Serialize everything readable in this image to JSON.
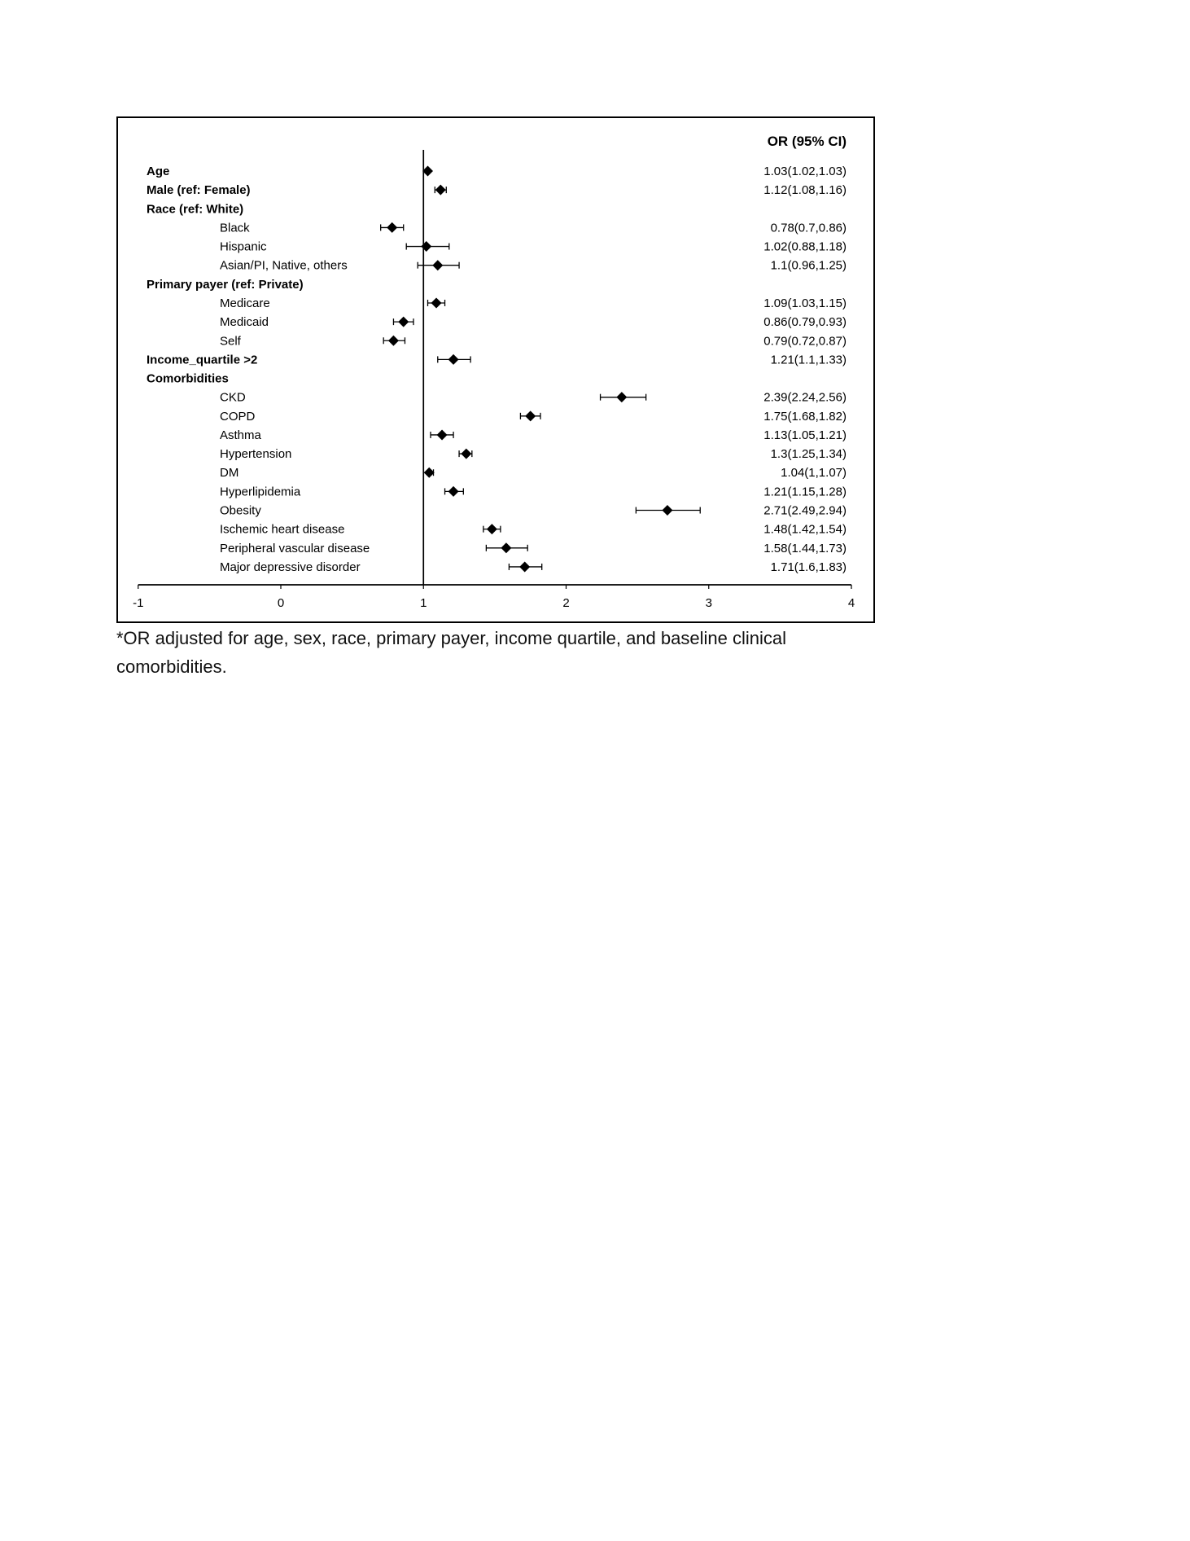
{
  "colors": {
    "marker": "#000000",
    "line": "#000000",
    "border": "#000000",
    "background": "#ffffff"
  },
  "chart_data": {
    "type": "forest",
    "header": "OR (95% CI)",
    "xlim": [
      -1,
      4
    ],
    "xticks": [
      -1,
      0,
      1,
      2,
      3,
      4
    ],
    "refline": 1,
    "rows": [
      {
        "label": "Age",
        "bold": true,
        "indent": 0,
        "or": 1.03,
        "lo": 1.02,
        "hi": 1.03,
        "text": "1.03(1.02,1.03)"
      },
      {
        "label": "Male (ref: Female)",
        "bold": true,
        "indent": 0,
        "or": 1.12,
        "lo": 1.08,
        "hi": 1.16,
        "text": "1.12(1.08,1.16)"
      },
      {
        "label": "Race (ref: White)",
        "bold": true,
        "indent": 0,
        "or": null,
        "lo": null,
        "hi": null,
        "text": ""
      },
      {
        "label": "Black",
        "bold": false,
        "indent": 1,
        "or": 0.78,
        "lo": 0.7,
        "hi": 0.86,
        "text": "0.78(0.7,0.86)"
      },
      {
        "label": "Hispanic",
        "bold": false,
        "indent": 1,
        "or": 1.02,
        "lo": 0.88,
        "hi": 1.18,
        "text": "1.02(0.88,1.18)"
      },
      {
        "label": "Asian/PI, Native, others",
        "bold": false,
        "indent": 1,
        "or": 1.1,
        "lo": 0.96,
        "hi": 1.25,
        "text": "1.1(0.96,1.25)"
      },
      {
        "label": "Primary payer (ref: Private)",
        "bold": true,
        "indent": 0,
        "or": null,
        "lo": null,
        "hi": null,
        "text": ""
      },
      {
        "label": "Medicare",
        "bold": false,
        "indent": 1,
        "or": 1.09,
        "lo": 1.03,
        "hi": 1.15,
        "text": "1.09(1.03,1.15)"
      },
      {
        "label": "Medicaid",
        "bold": false,
        "indent": 1,
        "or": 0.86,
        "lo": 0.79,
        "hi": 0.93,
        "text": "0.86(0.79,0.93)"
      },
      {
        "label": "Self",
        "bold": false,
        "indent": 1,
        "or": 0.79,
        "lo": 0.72,
        "hi": 0.87,
        "text": "0.79(0.72,0.87)"
      },
      {
        "label": "Income_quartile >2",
        "bold": true,
        "indent": 0,
        "or": 1.21,
        "lo": 1.1,
        "hi": 1.33,
        "text": "1.21(1.1,1.33)"
      },
      {
        "label": "Comorbidities",
        "bold": true,
        "indent": 0,
        "or": null,
        "lo": null,
        "hi": null,
        "text": ""
      },
      {
        "label": "CKD",
        "bold": false,
        "indent": 1,
        "or": 2.39,
        "lo": 2.24,
        "hi": 2.56,
        "text": "2.39(2.24,2.56)"
      },
      {
        "label": "COPD",
        "bold": false,
        "indent": 1,
        "or": 1.75,
        "lo": 1.68,
        "hi": 1.82,
        "text": "1.75(1.68,1.82)"
      },
      {
        "label": "Asthma",
        "bold": false,
        "indent": 1,
        "or": 1.13,
        "lo": 1.05,
        "hi": 1.21,
        "text": "1.13(1.05,1.21)"
      },
      {
        "label": "Hypertension",
        "bold": false,
        "indent": 1,
        "or": 1.3,
        "lo": 1.25,
        "hi": 1.34,
        "text": "1.3(1.25,1.34)"
      },
      {
        "label": "DM",
        "bold": false,
        "indent": 1,
        "or": 1.04,
        "lo": 1.0,
        "hi": 1.07,
        "text": "1.04(1,1.07)"
      },
      {
        "label": "Hyperlipidemia",
        "bold": false,
        "indent": 1,
        "or": 1.21,
        "lo": 1.15,
        "hi": 1.28,
        "text": "1.21(1.15,1.28)"
      },
      {
        "label": "Obesity",
        "bold": false,
        "indent": 1,
        "or": 2.71,
        "lo": 2.49,
        "hi": 2.94,
        "text": "2.71(2.49,2.94)"
      },
      {
        "label": "Ischemic heart disease",
        "bold": false,
        "indent": 1,
        "or": 1.48,
        "lo": 1.42,
        "hi": 1.54,
        "text": "1.48(1.42,1.54)"
      },
      {
        "label": "Peripheral vascular disease",
        "bold": false,
        "indent": 1,
        "or": 1.58,
        "lo": 1.44,
        "hi": 1.73,
        "text": "1.58(1.44,1.73)"
      },
      {
        "label": "Major depressive disorder",
        "bold": false,
        "indent": 1,
        "or": 1.71,
        "lo": 1.6,
        "hi": 1.83,
        "text": "1.71(1.6,1.83)"
      }
    ],
    "footnote": "*OR adjusted for age, sex, race, primary payer, income quartile, and baseline clinical comorbidities."
  }
}
